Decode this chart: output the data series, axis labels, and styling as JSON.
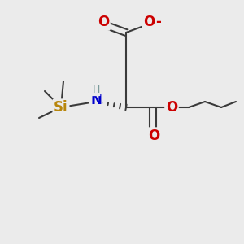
{
  "background_color": "#ebebeb",
  "bond_color": "#3a3a3a",
  "bond_width": 1.5,
  "figsize": [
    3.0,
    3.0
  ],
  "dpi": 100,
  "colors": {
    "Si": "#b8860b",
    "N": "#0000cc",
    "H": "#7a9a9a",
    "O": "#cc0000",
    "C": "#3a3a3a"
  }
}
